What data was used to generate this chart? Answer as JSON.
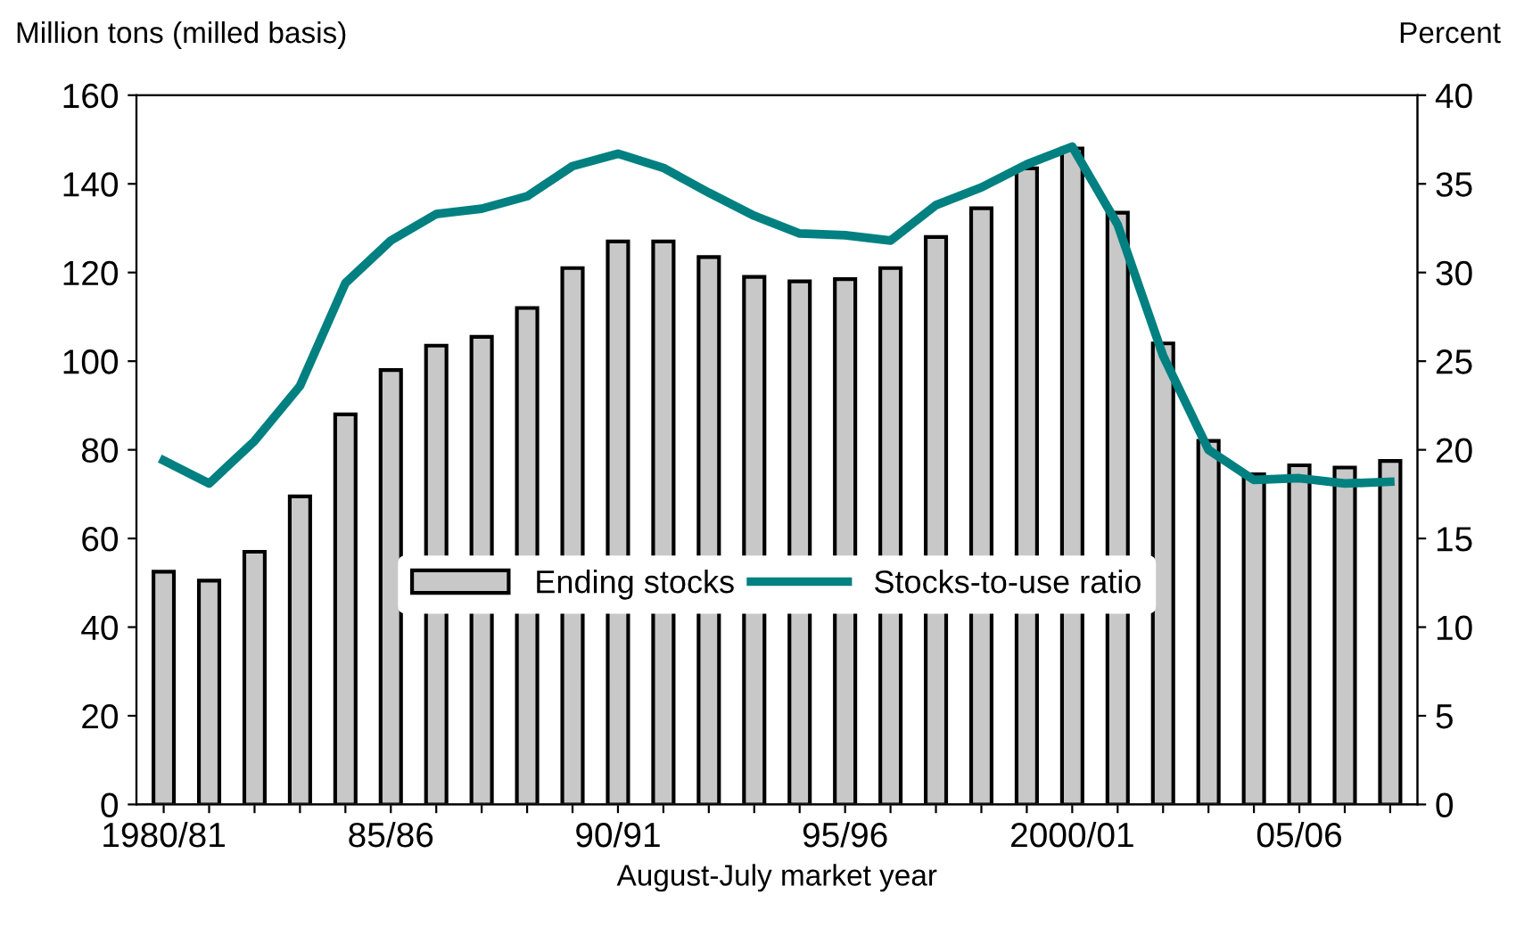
{
  "chart_data": {
    "type": "bar",
    "xlabel": "August-July market year",
    "ylabel": "Million tons (milled basis)",
    "y2label": "Percent",
    "categories": [
      "1980/81",
      null,
      null,
      null,
      null,
      "85/86",
      null,
      null,
      null,
      null,
      "90/91",
      null,
      null,
      null,
      null,
      "95/96",
      null,
      null,
      null,
      null,
      "2000/01",
      null,
      null,
      null,
      null,
      "05/06",
      null,
      null
    ],
    "series": [
      {
        "name": "Ending stocks",
        "color": "#c8c8c8",
        "values": [
          52.5,
          50.5,
          57,
          69.5,
          88,
          98,
          103.5,
          105.5,
          112,
          121,
          127,
          127,
          123.5,
          119,
          118,
          118.5,
          121,
          128,
          134.5,
          143.5,
          148,
          133.5,
          104,
          82,
          74.5,
          76.5,
          76,
          77.5
        ]
      },
      {
        "name": "Stocks-to-use ratio",
        "type": "line",
        "axis": "y2",
        "color": "#008080",
        "values": [
          19.4,
          18.1,
          20.5,
          23.6,
          29.4,
          31.8,
          33.3,
          33.6,
          34.3,
          36,
          36.7,
          35.9,
          34.5,
          33.2,
          32.2,
          32.1,
          31.8,
          33.8,
          34.8,
          36.1,
          37.1,
          32.7,
          25.3,
          20.0,
          18.3,
          18.4,
          18.1,
          18.2
        ]
      }
    ],
    "ylim": [
      0,
      160
    ],
    "yticks": [
      0,
      20,
      40,
      60,
      80,
      100,
      120,
      140,
      160
    ],
    "y2lim": [
      0,
      40
    ],
    "y2ticks": [
      0,
      5,
      10,
      15,
      20,
      25,
      30,
      35,
      40
    ],
    "legend": "center",
    "grid": false
  }
}
